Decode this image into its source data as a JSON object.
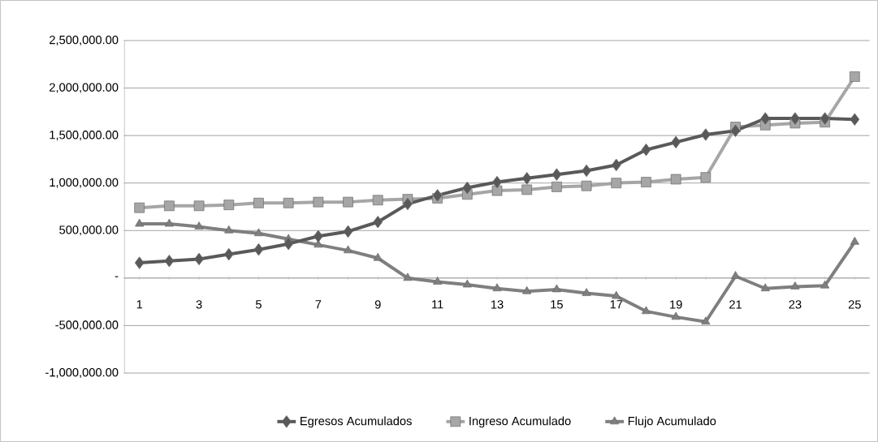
{
  "chart_data": {
    "type": "line",
    "categories": [
      "1",
      null,
      "3",
      null,
      "5",
      null,
      "7",
      null,
      "9",
      null,
      "11",
      null,
      "13",
      null,
      "15",
      null,
      "17",
      null,
      "19",
      null,
      "21",
      null,
      "23",
      null,
      "25"
    ],
    "series": [
      {
        "name": "Egresos Acumulados",
        "color": "#595959",
        "marker": "diamond",
        "values": [
          160000,
          180000,
          200000,
          250000,
          300000,
          360000,
          440000,
          490000,
          590000,
          780000,
          870000,
          950000,
          1010000,
          1050000,
          1090000,
          1130000,
          1190000,
          1350000,
          1430000,
          1510000,
          1550000,
          1680000,
          1680000,
          1680000,
          1670000
        ]
      },
      {
        "name": "Ingreso Acumulado",
        "color": "#a6a6a6",
        "marker": "square",
        "values": [
          740000,
          760000,
          760000,
          770000,
          790000,
          790000,
          800000,
          800000,
          820000,
          830000,
          840000,
          880000,
          920000,
          930000,
          960000,
          970000,
          1000000,
          1010000,
          1040000,
          1060000,
          1590000,
          1610000,
          1630000,
          1640000,
          2120000
        ]
      },
      {
        "name": "Flujo Acumulado",
        "color": "#7f7f7f",
        "marker": "triangle",
        "values": [
          570000,
          570000,
          540000,
          500000,
          470000,
          410000,
          350000,
          290000,
          210000,
          0,
          -40000,
          -70000,
          -110000,
          -140000,
          -120000,
          -160000,
          -190000,
          -350000,
          -410000,
          -460000,
          20000,
          -110000,
          -90000,
          -80000,
          380000
        ]
      }
    ],
    "ylim": [
      -1000000,
      2500000
    ],
    "yticks": [
      {
        "value": -1000000,
        "label": "-1,000,000.00"
      },
      {
        "value": -500000,
        "label": "-500,000.00"
      },
      {
        "value": 0,
        "label": "-"
      },
      {
        "value": 500000,
        "label": "500,000.00"
      },
      {
        "value": 1000000,
        "label": "1,000,000.00"
      },
      {
        "value": 1500000,
        "label": "1,500,000.00"
      },
      {
        "value": 2000000,
        "label": "2,000,000.00"
      },
      {
        "value": 2500000,
        "label": "2,500,000.00"
      }
    ],
    "grid": "y",
    "legend": "bottom",
    "line_style": "solid"
  }
}
